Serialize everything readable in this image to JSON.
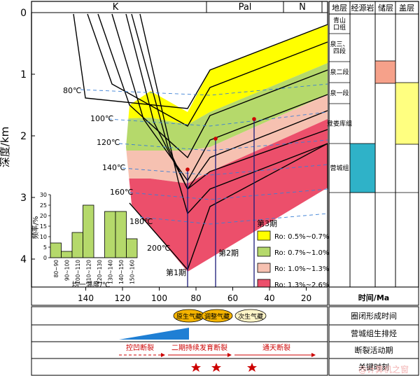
{
  "header": {
    "period_k": "K",
    "period_pal": "Pal",
    "period_n": "N"
  },
  "y_axis": {
    "label": "深度/km",
    "ticks": [
      "0",
      "1",
      "2",
      "3",
      "4"
    ]
  },
  "temperatures": [
    "80℃",
    "100℃",
    "120℃",
    "140℃",
    "160℃",
    "180℃",
    "200℃"
  ],
  "stages": [
    "第1期",
    "第2期",
    "第3期"
  ],
  "legend": {
    "items": [
      {
        "label": "Ro: 0.5%~0.7%",
        "color": "#ffff00"
      },
      {
        "label": "Ro: 0.7%~1.0%",
        "color": "#b5d96b"
      },
      {
        "label": "Ro: 1.0%~1.3%",
        "color": "#f6c1b1"
      },
      {
        "label": "Ro: 1.3%~2.6%",
        "color": "#ec4f6b"
      }
    ]
  },
  "inset_chart": {
    "title": "",
    "xlabel": "均一温度/℃",
    "ylabel": "频率/%",
    "chart_data": {
      "type": "bar",
      "categories": [
        "80~90",
        "90~100",
        "100~110",
        "110~120",
        "120~130",
        "130~140",
        "140~150",
        "150~160"
      ],
      "values": [
        7,
        3,
        12,
        25,
        0,
        22,
        22,
        9
      ],
      "ylim": [
        0,
        30
      ],
      "yticks": [
        "0",
        "5",
        "10",
        "15",
        "20",
        "25",
        "30"
      ]
    }
  },
  "right_panel": {
    "headers": [
      "地层",
      "经源岩",
      "储层",
      "盖层"
    ],
    "formations": [
      "青山口组",
      "泉三、四段",
      "泉二段",
      "泉一段",
      "登娄库组",
      "营城组"
    ]
  },
  "time_axis": {
    "ticks": [
      "140",
      "120",
      "100",
      "80",
      "60",
      "40",
      "20"
    ],
    "label": "时间/Ma"
  },
  "rows": {
    "trap": {
      "label": "圈闭形成时间",
      "ovals": [
        {
          "text": "原生气藏",
          "color": "#f5b400"
        },
        {
          "text": "调整气藏",
          "color": "#f5b400"
        },
        {
          "text": "次生气藏",
          "color": "#fff5c8"
        }
      ]
    },
    "expulsion": {
      "label": "营城组生排烃",
      "color": "#1f7fd4"
    },
    "faults": {
      "label": "断裂活动期",
      "segments": [
        "控凹断裂",
        "二期持续发育断裂",
        "通天断裂"
      ]
    },
    "key": {
      "label": "关键时刻"
    }
  },
  "watermark": "@计算机之窗"
}
